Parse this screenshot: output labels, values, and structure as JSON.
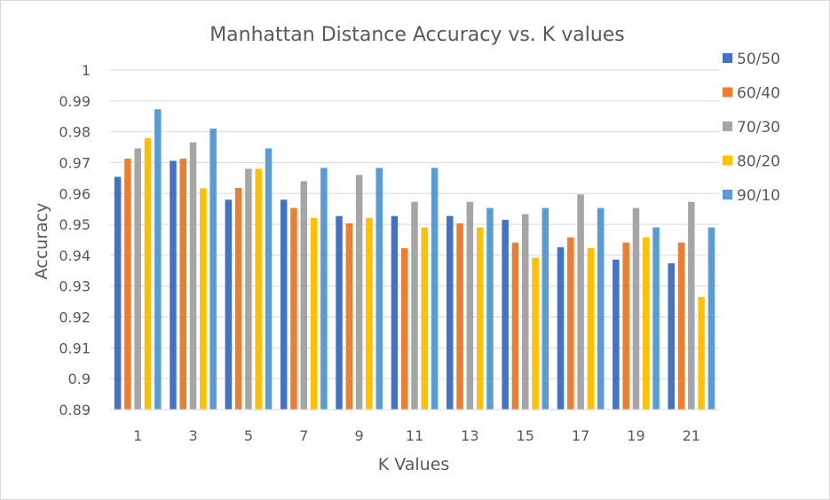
{
  "chart_data": {
    "type": "bar",
    "title": "Manhattan Distance Accuracy vs. K values",
    "xlabel": "K Values",
    "ylabel": "Accuracy",
    "ylim": [
      0.89,
      1.0
    ],
    "yticks": [
      0.89,
      0.9,
      0.91,
      0.92,
      0.93,
      0.94,
      0.95,
      0.96,
      0.97,
      0.98,
      0.99,
      1
    ],
    "ytick_labels": [
      "0.89",
      "0.9",
      "0.91",
      "0.92",
      "0.93",
      "0.94",
      "0.95",
      "0.96",
      "0.97",
      "0.98",
      "0.99",
      "1"
    ],
    "grid": true,
    "legend_position": "right",
    "categories": [
      "1",
      "3",
      "5",
      "7",
      "9",
      "11",
      "13",
      "15",
      "17",
      "19",
      "21"
    ],
    "series": [
      {
        "name": "50/50",
        "color": "#4472C4",
        "values": [
          0.9654,
          0.9706,
          0.958,
          0.958,
          0.9527,
          0.9527,
          0.9527,
          0.9515,
          0.9426,
          0.9386,
          0.9374
        ]
      },
      {
        "name": "60/40",
        "color": "#ED7D31",
        "values": [
          0.9713,
          0.9713,
          0.9618,
          0.9553,
          0.9503,
          0.9423,
          0.9503,
          0.9441,
          0.9458,
          0.9441,
          0.9441
        ]
      },
      {
        "name": "70/30",
        "color": "#A5A5A5",
        "values": [
          0.9746,
          0.9766,
          0.968,
          0.964,
          0.966,
          0.9573,
          0.9573,
          0.9533,
          0.9597,
          0.9553,
          0.9573
        ]
      },
      {
        "name": "80/20",
        "color": "#FFC000",
        "values": [
          0.978,
          0.9617,
          0.968,
          0.9521,
          0.9521,
          0.949,
          0.949,
          0.9392,
          0.9423,
          0.9458,
          0.9265
        ]
      },
      {
        "name": "90/10",
        "color": "#5B9BD5",
        "values": [
          0.9873,
          0.981,
          0.9746,
          0.9683,
          0.9683,
          0.9683,
          0.9553,
          0.9553,
          0.9553,
          0.949,
          0.949
        ]
      }
    ]
  }
}
